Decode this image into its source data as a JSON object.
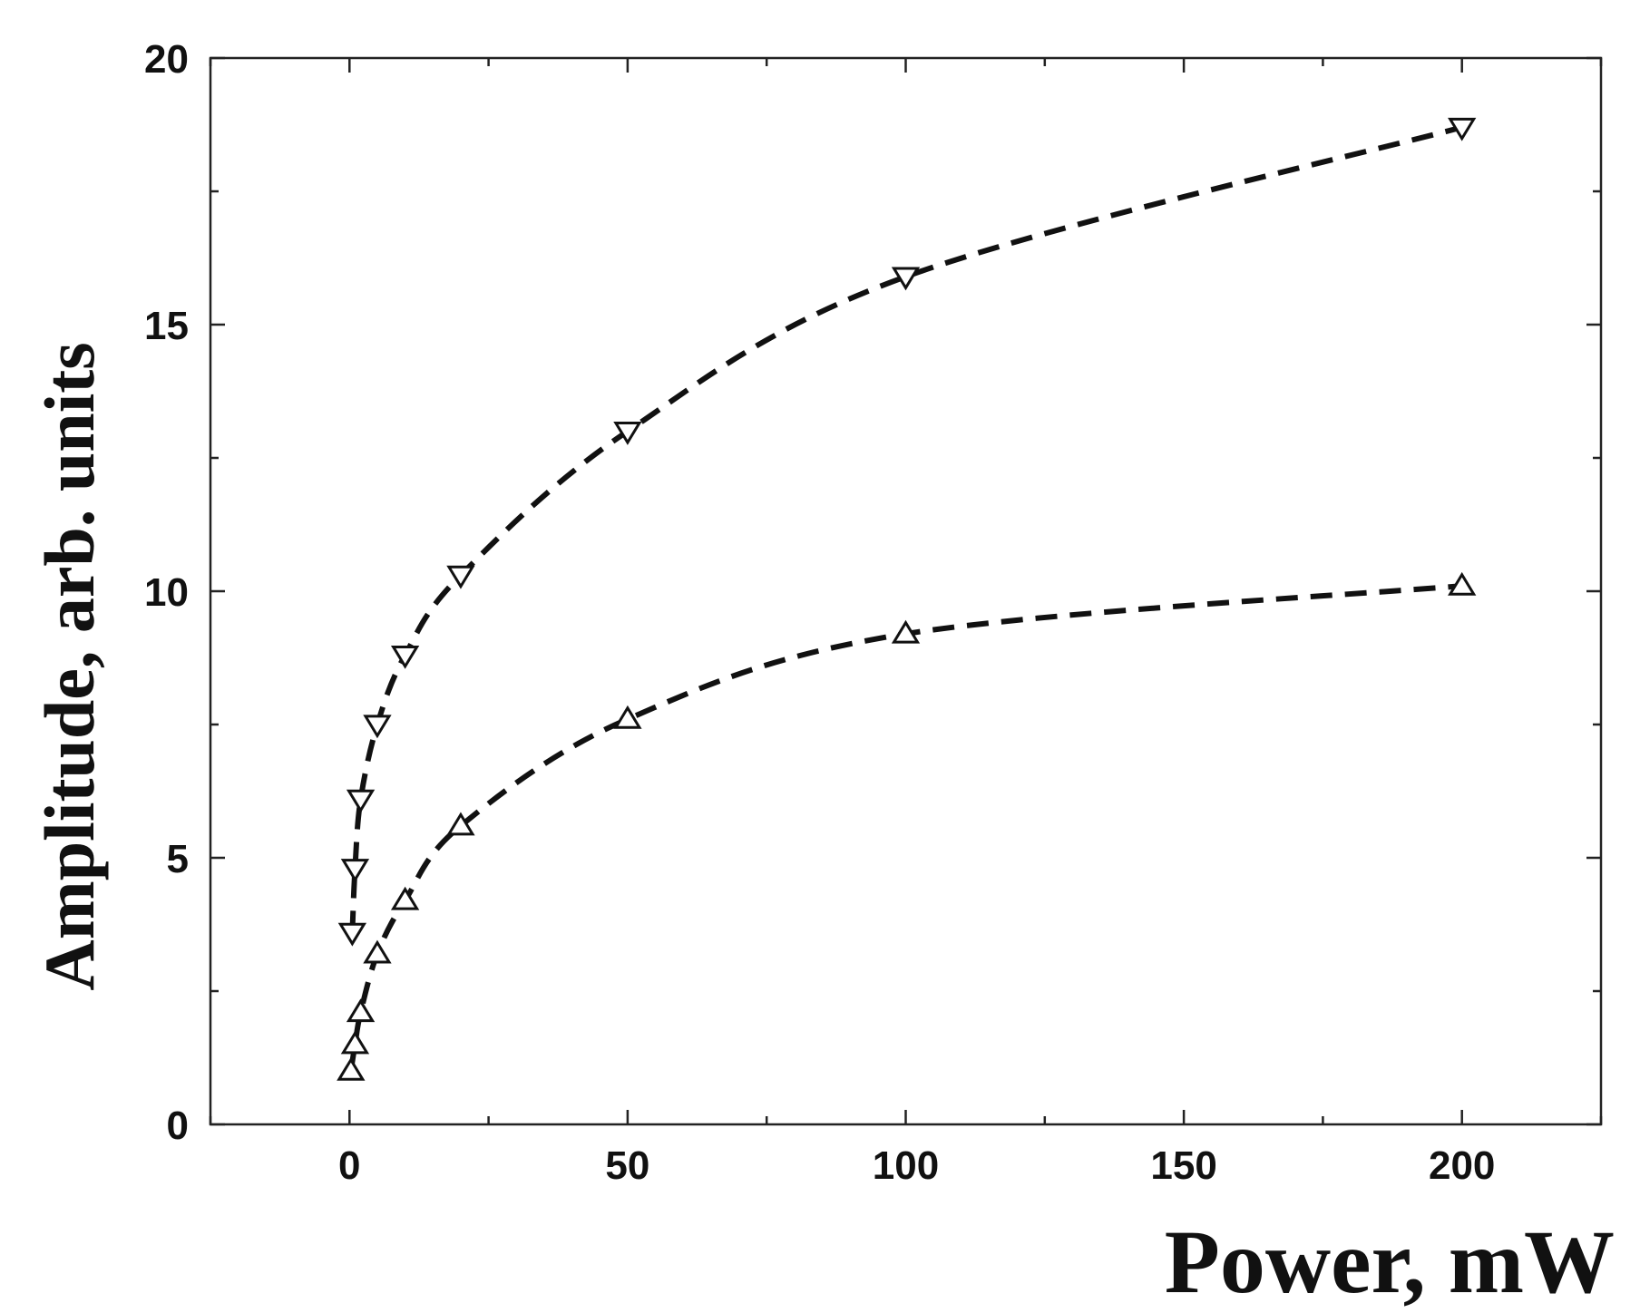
{
  "chart_data": {
    "type": "scatter",
    "xlabel": "Power, mW",
    "ylabel": "Amplitude, arb. units",
    "xlim": [
      -25,
      225
    ],
    "ylim": [
      0,
      20
    ],
    "xticks": [
      0,
      50,
      100,
      150,
      200
    ],
    "yticks": [
      0,
      5,
      10,
      15,
      20
    ],
    "grid": false,
    "series": [
      {
        "marker": "triangle-down",
        "fit": "dashed",
        "x": [
          0.5,
          1,
          2,
          5,
          10,
          20,
          50,
          100,
          200
        ],
        "y": [
          3.6,
          4.8,
          6.1,
          7.5,
          8.8,
          10.3,
          13.0,
          15.9,
          18.7
        ]
      },
      {
        "marker": "triangle-up",
        "fit": "dashed",
        "x": [
          0.25,
          1,
          2,
          5,
          10,
          20,
          50,
          100,
          200
        ],
        "y": [
          1.0,
          1.5,
          2.1,
          3.2,
          4.2,
          5.6,
          7.6,
          9.2,
          10.1
        ]
      }
    ]
  }
}
